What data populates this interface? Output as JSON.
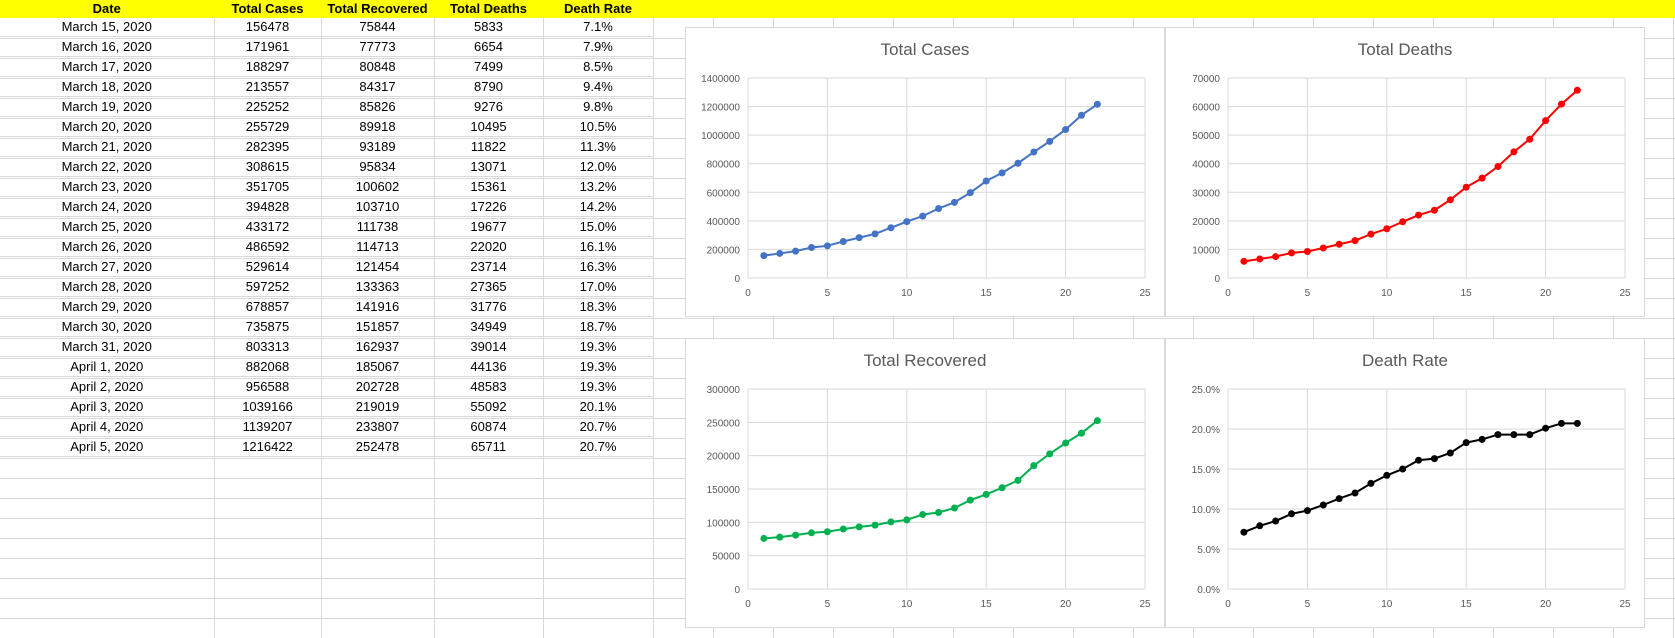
{
  "table": {
    "headers": [
      "Date",
      "Total Cases",
      "Total Recovered",
      "Total Deaths",
      "Death Rate"
    ],
    "rows": [
      [
        "March 15, 2020",
        "156478",
        "75844",
        "5833",
        "7.1%"
      ],
      [
        "March 16, 2020",
        "171961",
        "77773",
        "6654",
        "7.9%"
      ],
      [
        "March 17, 2020",
        "188297",
        "80848",
        "7499",
        "8.5%"
      ],
      [
        "March 18, 2020",
        "213557",
        "84317",
        "8790",
        "9.4%"
      ],
      [
        "March 19, 2020",
        "225252",
        "85826",
        "9276",
        "9.8%"
      ],
      [
        "March 20, 2020",
        "255729",
        "89918",
        "10495",
        "10.5%"
      ],
      [
        "March 21, 2020",
        "282395",
        "93189",
        "11822",
        "11.3%"
      ],
      [
        "March 22, 2020",
        "308615",
        "95834",
        "13071",
        "12.0%"
      ],
      [
        "March 23, 2020",
        "351705",
        "100602",
        "15361",
        "13.2%"
      ],
      [
        "March 24, 2020",
        "394828",
        "103710",
        "17226",
        "14.2%"
      ],
      [
        "March 25, 2020",
        "433172",
        "111738",
        "19677",
        "15.0%"
      ],
      [
        "March 26, 2020",
        "486592",
        "114713",
        "22020",
        "16.1%"
      ],
      [
        "March 27, 2020",
        "529614",
        "121454",
        "23714",
        "16.3%"
      ],
      [
        "March 28, 2020",
        "597252",
        "133363",
        "27365",
        "17.0%"
      ],
      [
        "March 29, 2020",
        "678857",
        "141916",
        "31776",
        "18.3%"
      ],
      [
        "March 30, 2020",
        "735875",
        "151857",
        "34949",
        "18.7%"
      ],
      [
        "March 31, 2020",
        "803313",
        "162937",
        "39014",
        "19.3%"
      ],
      [
        "April 1, 2020",
        "882068",
        "185067",
        "44136",
        "19.3%"
      ],
      [
        "April 2, 2020",
        "956588",
        "202728",
        "48583",
        "19.3%"
      ],
      [
        "April 3, 2020",
        "1039166",
        "219019",
        "55092",
        "20.1%"
      ],
      [
        "April 4, 2020",
        "1139207",
        "233807",
        "60874",
        "20.7%"
      ],
      [
        "April 5, 2020",
        "1216422",
        "252478",
        "65711",
        "20.7%"
      ]
    ]
  },
  "chart_data": [
    {
      "type": "line",
      "title": "Total Cases",
      "color": "#4472c4",
      "x": [
        1,
        2,
        3,
        4,
        5,
        6,
        7,
        8,
        9,
        10,
        11,
        12,
        13,
        14,
        15,
        16,
        17,
        18,
        19,
        20,
        21,
        22
      ],
      "y": [
        156478,
        171961,
        188297,
        213557,
        225252,
        255729,
        282395,
        308615,
        351705,
        394828,
        433172,
        486592,
        529614,
        597252,
        678857,
        735875,
        803313,
        882068,
        956588,
        1039166,
        1139207,
        1216422
      ],
      "xlim": [
        0,
        25
      ],
      "ylim": [
        0,
        1400000
      ],
      "xticks": [
        0,
        5,
        10,
        15,
        20,
        25
      ],
      "yticks": [
        0,
        200000,
        400000,
        600000,
        800000,
        1000000,
        1200000,
        1400000
      ],
      "ytick_labels": [
        "0",
        "200000",
        "400000",
        "600000",
        "800000",
        "1000000",
        "1200000",
        "1400000"
      ],
      "grid": true,
      "legend": "none"
    },
    {
      "type": "line",
      "title": "Total Deaths",
      "color": "#ff0000",
      "x": [
        1,
        2,
        3,
        4,
        5,
        6,
        7,
        8,
        9,
        10,
        11,
        12,
        13,
        14,
        15,
        16,
        17,
        18,
        19,
        20,
        21,
        22
      ],
      "y": [
        5833,
        6654,
        7499,
        8790,
        9276,
        10495,
        11822,
        13071,
        15361,
        17226,
        19677,
        22020,
        23714,
        27365,
        31776,
        34949,
        39014,
        44136,
        48583,
        55092,
        60874,
        65711
      ],
      "xlim": [
        0,
        25
      ],
      "ylim": [
        0,
        70000
      ],
      "xticks": [
        0,
        5,
        10,
        15,
        20,
        25
      ],
      "yticks": [
        0,
        10000,
        20000,
        30000,
        40000,
        50000,
        60000,
        70000
      ],
      "ytick_labels": [
        "0",
        "10000",
        "20000",
        "30000",
        "40000",
        "50000",
        "60000",
        "70000"
      ],
      "grid": true,
      "legend": "none"
    },
    {
      "type": "line",
      "title": "Total Recovered",
      "color": "#00b050",
      "x": [
        1,
        2,
        3,
        4,
        5,
        6,
        7,
        8,
        9,
        10,
        11,
        12,
        13,
        14,
        15,
        16,
        17,
        18,
        19,
        20,
        21,
        22
      ],
      "y": [
        75844,
        77773,
        80848,
        84317,
        85826,
        89918,
        93189,
        95834,
        100602,
        103710,
        111738,
        114713,
        121454,
        133363,
        141916,
        151857,
        162937,
        185067,
        202728,
        219019,
        233807,
        252478
      ],
      "xlim": [
        0,
        25
      ],
      "ylim": [
        0,
        300000
      ],
      "xticks": [
        0,
        5,
        10,
        15,
        20,
        25
      ],
      "yticks": [
        0,
        50000,
        100000,
        150000,
        200000,
        250000,
        300000
      ],
      "ytick_labels": [
        "0",
        "50000",
        "100000",
        "150000",
        "200000",
        "250000",
        "300000"
      ],
      "grid": true,
      "legend": "none"
    },
    {
      "type": "line",
      "title": "Death Rate",
      "color": "#000000",
      "x": [
        1,
        2,
        3,
        4,
        5,
        6,
        7,
        8,
        9,
        10,
        11,
        12,
        13,
        14,
        15,
        16,
        17,
        18,
        19,
        20,
        21,
        22
      ],
      "y": [
        0.071,
        0.079,
        0.085,
        0.094,
        0.098,
        0.105,
        0.113,
        0.12,
        0.132,
        0.142,
        0.15,
        0.161,
        0.163,
        0.17,
        0.183,
        0.187,
        0.193,
        0.193,
        0.193,
        0.201,
        0.207,
        0.207
      ],
      "xlim": [
        0,
        25
      ],
      "ylim": [
        0,
        0.25
      ],
      "xticks": [
        0,
        5,
        10,
        15,
        20,
        25
      ],
      "yticks": [
        0,
        0.05,
        0.1,
        0.15,
        0.2,
        0.25
      ],
      "ytick_labels": [
        "0.0%",
        "5.0%",
        "10.0%",
        "15.0%",
        "20.0%",
        "25.0%"
      ],
      "grid": true,
      "legend": "none"
    }
  ]
}
